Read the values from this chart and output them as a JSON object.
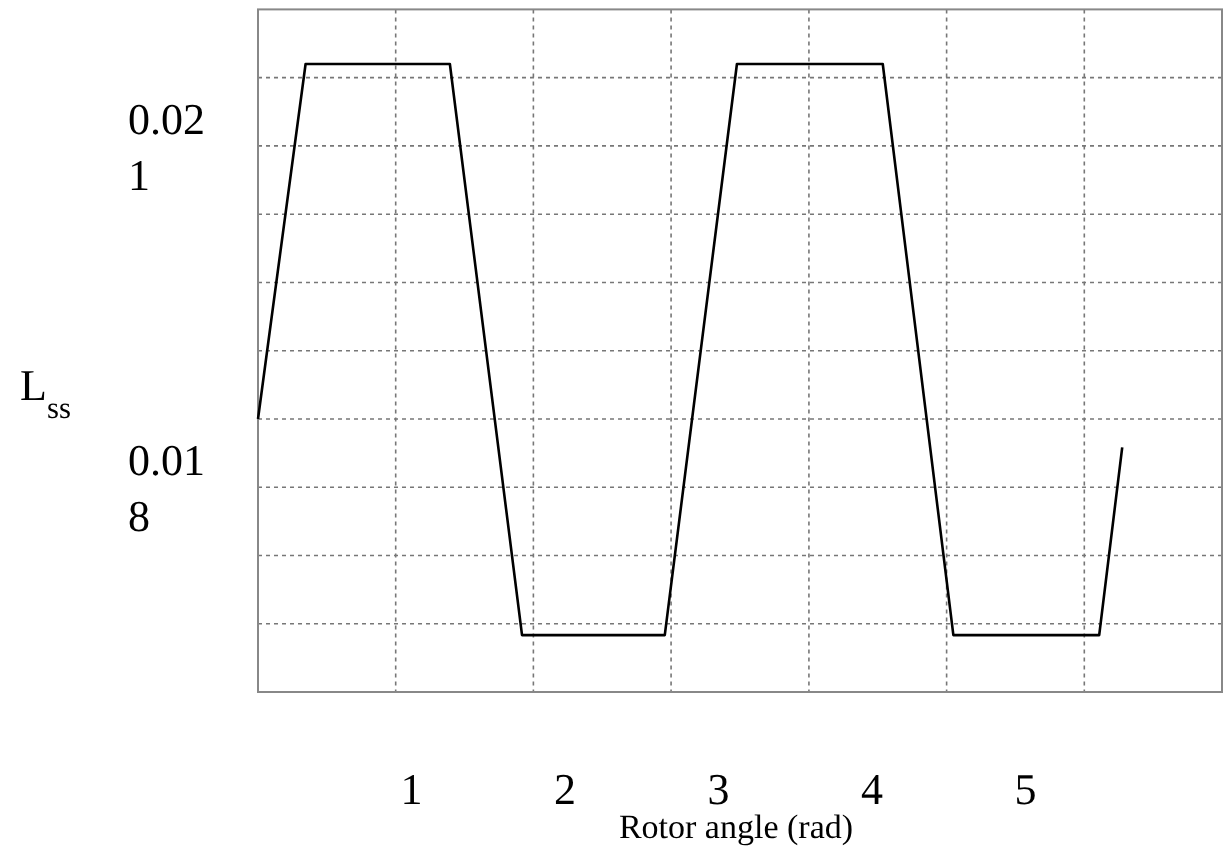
{
  "chart_data": {
    "type": "line",
    "xlabel": "Rotor angle (rad)",
    "ylabel": "L$_{ss}$",
    "x": [
      0,
      0.31,
      1.25,
      1.72,
      2.65,
      3.12,
      4.07,
      4.53,
      5.48,
      5.63
    ],
    "series": [
      {
        "color": "#000000",
        "values": [
          0.0186,
          0.02172,
          0.02172,
          0.0167,
          0.0167,
          0.02172,
          0.02172,
          0.0167,
          0.0167,
          0.01835
        ]
      }
    ],
    "xlim": [
      0,
      6.28
    ],
    "xticks": [
      1,
      2,
      3,
      4,
      5,
      {
        "value": 0.897,
        "label": null
      },
      {
        "value": 1.794,
        "label": null
      },
      {
        "value": 2.691,
        "label": null
      },
      {
        "value": 3.589,
        "label": null
      },
      {
        "value": 4.486,
        "label": null
      },
      {
        "value": 5.383,
        "label": null
      }
    ],
    "ylim": [
      0.0162,
      0.0222
    ],
    "yticks": [
      {
        "value": 0.0168,
        "label": null
      },
      {
        "value": 0.0174,
        "label": null
      },
      0.018,
      {
        "value": 0.0186,
        "label": null
      },
      {
        "value": 0.0192,
        "label": null
      },
      {
        "value": 0.0198,
        "label": null
      },
      {
        "value": 0.0204,
        "label": null
      },
      0.021,
      {
        "value": 0.0216,
        "label": null
      }
    ],
    "grid": true,
    "marker": "none",
    "line_style": "solid"
  }
}
